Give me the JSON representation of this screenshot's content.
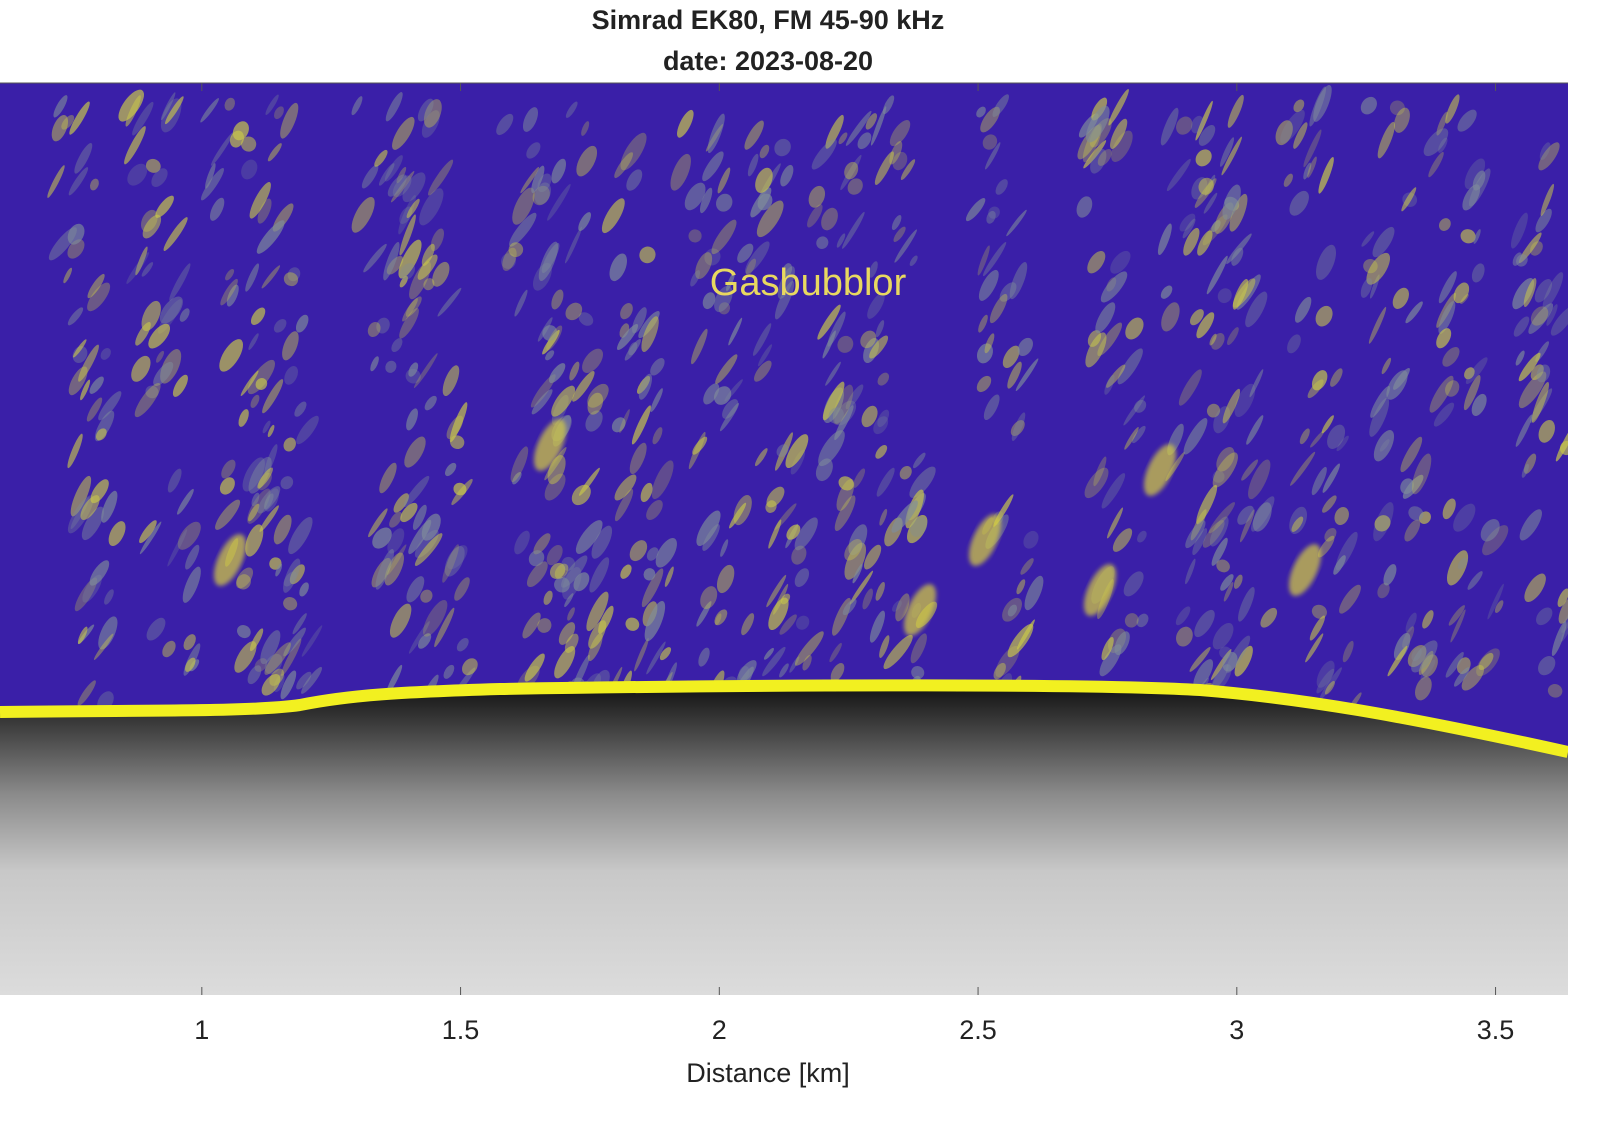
{
  "chart_data": {
    "type": "echogram",
    "title": "Simrad EK80, FM 45-90 kHz",
    "subtitle": "date: 2023-08-20",
    "xlabel": "Distance [km]",
    "annotation": "Gasbubblor",
    "xlim": [
      0.61,
      3.64
    ],
    "xticks": [
      1,
      1.5,
      2,
      2.5,
      3,
      3.5
    ]
  }
}
